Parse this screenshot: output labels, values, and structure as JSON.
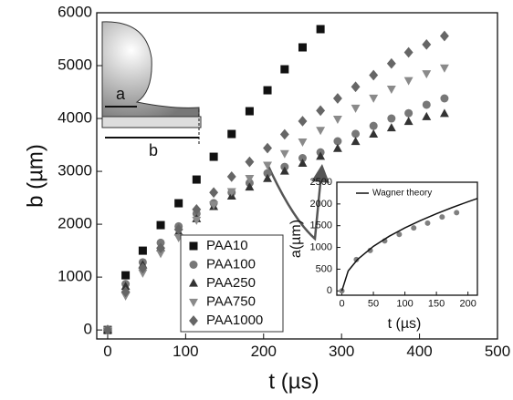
{
  "chart_data": [
    {
      "type": "scatter",
      "xlabel": "t (µs)",
      "ylabel": "b (µm)",
      "annotations": [
        "a",
        "b"
      ],
      "x": [
        0,
        23,
        45,
        68,
        91,
        114,
        136,
        159,
        182,
        205,
        227,
        250,
        273,
        295,
        318,
        341,
        364,
        386,
        409,
        432
      ],
      "series": [
        {
          "name": "PAA10",
          "marker": "square",
          "color": "#111111",
          "values": [
            0,
            1034,
            1500,
            1983,
            2397,
            2845,
            3276,
            3707,
            4138,
            4534,
            4931,
            5345,
            5690,
            null,
            null,
            null,
            null,
            null,
            null,
            null
          ]
        },
        {
          "name": "PAA100",
          "marker": "circle",
          "color": "#777777",
          "values": [
            0,
            870,
            1280,
            1650,
            1960,
            2200,
            2400,
            2600,
            2780,
            2965,
            3086,
            3250,
            3360,
            3570,
            3710,
            3860,
            4000,
            4100,
            4260,
            4380
          ]
        },
        {
          "name": "PAA250",
          "marker": "triangle-up",
          "color": "#333333",
          "values": [
            0,
            820,
            1230,
            1550,
            1850,
            2100,
            2330,
            2530,
            2700,
            2860,
            3000,
            3150,
            3280,
            3430,
            3560,
            3700,
            3820,
            3940,
            4030,
            4090
          ]
        },
        {
          "name": "PAA750",
          "marker": "triangle-down",
          "color": "#8a8a8a",
          "values": [
            0,
            650,
            1080,
            1450,
            1750,
            2080,
            2370,
            2620,
            2870,
            3120,
            3340,
            3560,
            3780,
            3990,
            4200,
            4390,
            4560,
            4720,
            4850,
            4960
          ]
        },
        {
          "name": "PAA1000",
          "marker": "diamond",
          "color": "#666666",
          "values": [
            0,
            720,
            1170,
            1550,
            1900,
            2280,
            2600,
            2900,
            3180,
            3440,
            3700,
            3950,
            4150,
            4380,
            4600,
            4820,
            5040,
            5250,
            5400,
            5560
          ]
        }
      ],
      "xlim": [
        -14,
        500
      ],
      "ylim": [
        -170,
        6000
      ],
      "xticks": [
        0,
        100,
        200,
        300,
        400,
        500
      ],
      "yticks": [
        0,
        1000,
        2000,
        3000,
        4000,
        5000,
        6000
      ]
    },
    {
      "type": "scatter",
      "xlabel": "t (µs)",
      "ylabel": "a(µm)",
      "series": [
        {
          "marker": "circle",
          "color": "#808080",
          "x": [
            0,
            23,
            45,
            68,
            91,
            114,
            136,
            159,
            182
          ],
          "values": [
            0,
            720,
            930,
            1150,
            1300,
            1450,
            1560,
            1700,
            1800
          ]
        },
        {
          "name": "Wagner theory",
          "marker": "line",
          "color": "#111111",
          "x": [
            0,
            10,
            25,
            50,
            75,
            100,
            125,
            150,
            175,
            200,
            215
          ],
          "values": [
            0,
            459,
            725,
            1025,
            1256,
            1450,
            1621,
            1776,
            1918,
            2051,
            2126
          ]
        }
      ],
      "xlim": [
        -8,
        215
      ],
      "ylim": [
        -100,
        2500
      ],
      "xticks": [
        0,
        50,
        100,
        150,
        200
      ],
      "yticks": [
        0,
        500,
        1000,
        1500,
        2000,
        2500
      ]
    }
  ]
}
